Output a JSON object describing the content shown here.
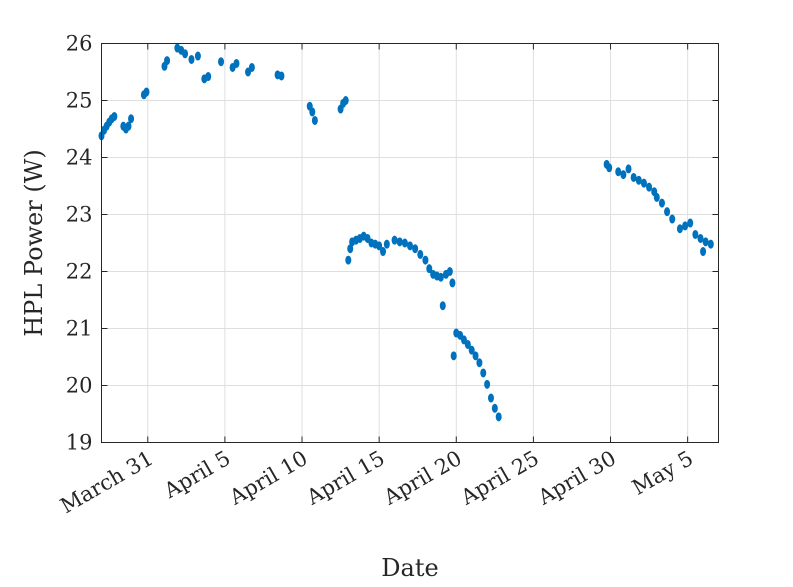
{
  "chart_data": {
    "type": "scatter",
    "xlabel": "Date",
    "ylabel": "HPL Power (W)",
    "x_is_date": true,
    "x_domain": [
      "2021-03-28",
      "2021-05-07"
    ],
    "xlim_labels": [
      "March 31",
      "April 5",
      "April 10",
      "April 15",
      "April 20",
      "April 25",
      "April 30",
      "May 5"
    ],
    "x_tick_dates": [
      "2021-03-31",
      "2021-04-05",
      "2021-04-10",
      "2021-04-15",
      "2021-04-20",
      "2021-04-25",
      "2021-04-30",
      "2021-05-05"
    ],
    "ylim": [
      19,
      26
    ],
    "y_ticks": [
      19,
      20,
      21,
      22,
      23,
      24,
      25,
      26
    ],
    "grid": true,
    "legend": false,
    "series": [
      {
        "color": "#0072BD",
        "points": [
          [
            "2021-03-28T00:00",
            24.38
          ],
          [
            "2021-03-28T04:00",
            24.48
          ],
          [
            "2021-03-28T08:00",
            24.55
          ],
          [
            "2021-03-28T12:00",
            24.62
          ],
          [
            "2021-03-28T16:00",
            24.68
          ],
          [
            "2021-03-28T20:00",
            24.72
          ],
          [
            "2021-03-29T10:00",
            24.55
          ],
          [
            "2021-03-29T14:00",
            24.5
          ],
          [
            "2021-03-29T18:00",
            24.55
          ],
          [
            "2021-03-29T22:00",
            24.68
          ],
          [
            "2021-03-30T18:00",
            25.1
          ],
          [
            "2021-03-30T22:00",
            25.15
          ],
          [
            "2021-04-01T02:00",
            25.6
          ],
          [
            "2021-04-01T06:00",
            25.7
          ],
          [
            "2021-04-01T22:00",
            25.92
          ],
          [
            "2021-04-02T04:00",
            25.88
          ],
          [
            "2021-04-02T10:00",
            25.82
          ],
          [
            "2021-04-02T20:00",
            25.72
          ],
          [
            "2021-04-03T06:00",
            25.78
          ],
          [
            "2021-04-03T16:00",
            25.38
          ],
          [
            "2021-04-03T22:00",
            25.42
          ],
          [
            "2021-04-04T18:00",
            25.68
          ],
          [
            "2021-04-05T12:00",
            25.58
          ],
          [
            "2021-04-05T18:00",
            25.65
          ],
          [
            "2021-04-06T12:00",
            25.5
          ],
          [
            "2021-04-06T18:00",
            25.58
          ],
          [
            "2021-04-08T10:00",
            25.45
          ],
          [
            "2021-04-08T16:00",
            25.43
          ],
          [
            "2021-04-10T12:00",
            24.9
          ],
          [
            "2021-04-10T16:00",
            24.8
          ],
          [
            "2021-04-10T20:00",
            24.65
          ],
          [
            "2021-04-12T12:00",
            24.85
          ],
          [
            "2021-04-12T16:00",
            24.95
          ],
          [
            "2021-04-12T20:00",
            25.0
          ],
          [
            "2021-04-13T00:00",
            22.2
          ],
          [
            "2021-04-13T03:00",
            22.4
          ],
          [
            "2021-04-13T06:00",
            22.52
          ],
          [
            "2021-04-13T12:00",
            22.55
          ],
          [
            "2021-04-13T18:00",
            22.58
          ],
          [
            "2021-04-14T00:00",
            22.62
          ],
          [
            "2021-04-14T06:00",
            22.58
          ],
          [
            "2021-04-14T12:00",
            22.5
          ],
          [
            "2021-04-14T18:00",
            22.48
          ],
          [
            "2021-04-15T00:00",
            22.45
          ],
          [
            "2021-04-15T06:00",
            22.35
          ],
          [
            "2021-04-15T12:00",
            22.48
          ],
          [
            "2021-04-16T00:00",
            22.55
          ],
          [
            "2021-04-16T08:00",
            22.52
          ],
          [
            "2021-04-16T16:00",
            22.5
          ],
          [
            "2021-04-17T00:00",
            22.45
          ],
          [
            "2021-04-17T08:00",
            22.4
          ],
          [
            "2021-04-17T16:00",
            22.3
          ],
          [
            "2021-04-18T00:00",
            22.2
          ],
          [
            "2021-04-18T06:00",
            22.05
          ],
          [
            "2021-04-18T12:00",
            21.95
          ],
          [
            "2021-04-18T18:00",
            21.92
          ],
          [
            "2021-04-19T00:00",
            21.9
          ],
          [
            "2021-04-19T03:00",
            21.4
          ],
          [
            "2021-04-19T08:00",
            21.95
          ],
          [
            "2021-04-19T14:00",
            22.0
          ],
          [
            "2021-04-19T18:00",
            21.8
          ],
          [
            "2021-04-19T20:00",
            20.52
          ],
          [
            "2021-04-20T00:00",
            20.92
          ],
          [
            "2021-04-20T06:00",
            20.88
          ],
          [
            "2021-04-20T12:00",
            20.8
          ],
          [
            "2021-04-20T18:00",
            20.72
          ],
          [
            "2021-04-21T00:00",
            20.62
          ],
          [
            "2021-04-21T06:00",
            20.52
          ],
          [
            "2021-04-21T12:00",
            20.4
          ],
          [
            "2021-04-21T18:00",
            20.22
          ],
          [
            "2021-04-22T00:00",
            20.02
          ],
          [
            "2021-04-22T06:00",
            19.78
          ],
          [
            "2021-04-22T12:00",
            19.6
          ],
          [
            "2021-04-22T18:00",
            19.45
          ],
          [
            "2021-04-29T18:00",
            23.88
          ],
          [
            "2021-04-29T22:00",
            23.82
          ],
          [
            "2021-04-30T12:00",
            23.75
          ],
          [
            "2021-04-30T20:00",
            23.7
          ],
          [
            "2021-05-01T04:00",
            23.8
          ],
          [
            "2021-05-01T12:00",
            23.65
          ],
          [
            "2021-05-01T20:00",
            23.6
          ],
          [
            "2021-05-02T04:00",
            23.55
          ],
          [
            "2021-05-02T12:00",
            23.48
          ],
          [
            "2021-05-02T20:00",
            23.4
          ],
          [
            "2021-05-03T00:00",
            23.3
          ],
          [
            "2021-05-03T08:00",
            23.2
          ],
          [
            "2021-05-03T16:00",
            23.05
          ],
          [
            "2021-05-04T00:00",
            22.92
          ],
          [
            "2021-05-04T12:00",
            22.75
          ],
          [
            "2021-05-04T20:00",
            22.8
          ],
          [
            "2021-05-05T04:00",
            22.85
          ],
          [
            "2021-05-05T12:00",
            22.65
          ],
          [
            "2021-05-05T20:00",
            22.58
          ],
          [
            "2021-05-06T00:00",
            22.35
          ],
          [
            "2021-05-06T04:00",
            22.52
          ],
          [
            "2021-05-06T12:00",
            22.48
          ]
        ]
      }
    ]
  }
}
